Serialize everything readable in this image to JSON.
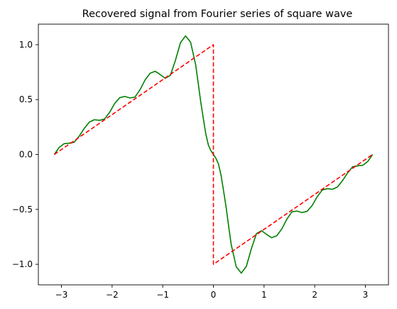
{
  "chart_data": {
    "type": "line",
    "title": "Recovered signal from Fourier series of square wave",
    "xlabel": "",
    "ylabel": "",
    "xlim": [
      -3.456,
      3.456
    ],
    "ylim": [
      -1.187,
      1.187
    ],
    "x_ticks": [
      -3,
      -2,
      -1,
      0,
      1,
      2,
      3
    ],
    "x_tick_labels": [
      "−3",
      "−2",
      "−1",
      "0",
      "1",
      "2",
      "3"
    ],
    "y_ticks": [
      -1.0,
      -0.5,
      0.0,
      0.5,
      1.0
    ],
    "y_tick_labels": [
      "−1.0",
      "−0.5",
      "0.0",
      "0.5",
      "1.0"
    ],
    "grid": false,
    "legend": "none",
    "series": [
      {
        "style": "solid",
        "color": "#008000",
        "x": [
          -3.1416,
          -3.05,
          -2.95,
          -2.85,
          -2.75,
          -2.65,
          -2.55,
          -2.45,
          -2.35,
          -2.25,
          -2.15,
          -2.05,
          -1.95,
          -1.85,
          -1.75,
          -1.65,
          -1.55,
          -1.45,
          -1.35,
          -1.25,
          -1.15,
          -1.05,
          -0.95,
          -0.85,
          -0.75,
          -0.65,
          -0.55,
          -0.45,
          -0.35,
          -0.3,
          -0.25,
          -0.2,
          -0.15,
          -0.1,
          -0.05,
          0.0,
          0.05,
          0.1,
          0.15,
          0.2,
          0.25,
          0.3,
          0.35,
          0.45,
          0.55,
          0.65,
          0.75,
          0.85,
          0.95,
          1.05,
          1.15,
          1.25,
          1.35,
          1.45,
          1.55,
          1.65,
          1.75,
          1.85,
          1.95,
          2.05,
          2.15,
          2.25,
          2.35,
          2.45,
          2.55,
          2.65,
          2.75,
          2.85,
          2.95,
          3.05,
          3.1416
        ],
        "y": [
          0.0,
          0.062,
          0.098,
          0.103,
          0.111,
          0.167,
          0.237,
          0.295,
          0.317,
          0.311,
          0.323,
          0.383,
          0.464,
          0.517,
          0.529,
          0.515,
          0.522,
          0.589,
          0.678,
          0.74,
          0.758,
          0.728,
          0.694,
          0.72,
          0.857,
          1.019,
          1.08,
          1.022,
          0.816,
          0.65,
          0.478,
          0.33,
          0.187,
          0.087,
          0.035,
          0.0,
          -0.035,
          -0.087,
          -0.187,
          -0.33,
          -0.478,
          -0.65,
          -0.816,
          -1.022,
          -1.08,
          -1.019,
          -0.857,
          -0.72,
          -0.694,
          -0.728,
          -0.758,
          -0.74,
          -0.678,
          -0.589,
          -0.522,
          -0.515,
          -0.529,
          -0.517,
          -0.464,
          -0.383,
          -0.323,
          -0.311,
          -0.317,
          -0.295,
          -0.237,
          -0.167,
          -0.111,
          -0.103,
          -0.098,
          -0.062,
          0.0
        ]
      },
      {
        "style": "dashed",
        "color": "#ff0000",
        "x": [
          -3.1416,
          0.0,
          0.0,
          3.1416
        ],
        "y": [
          0.0,
          1.0,
          -1.0,
          0.0
        ]
      }
    ]
  }
}
